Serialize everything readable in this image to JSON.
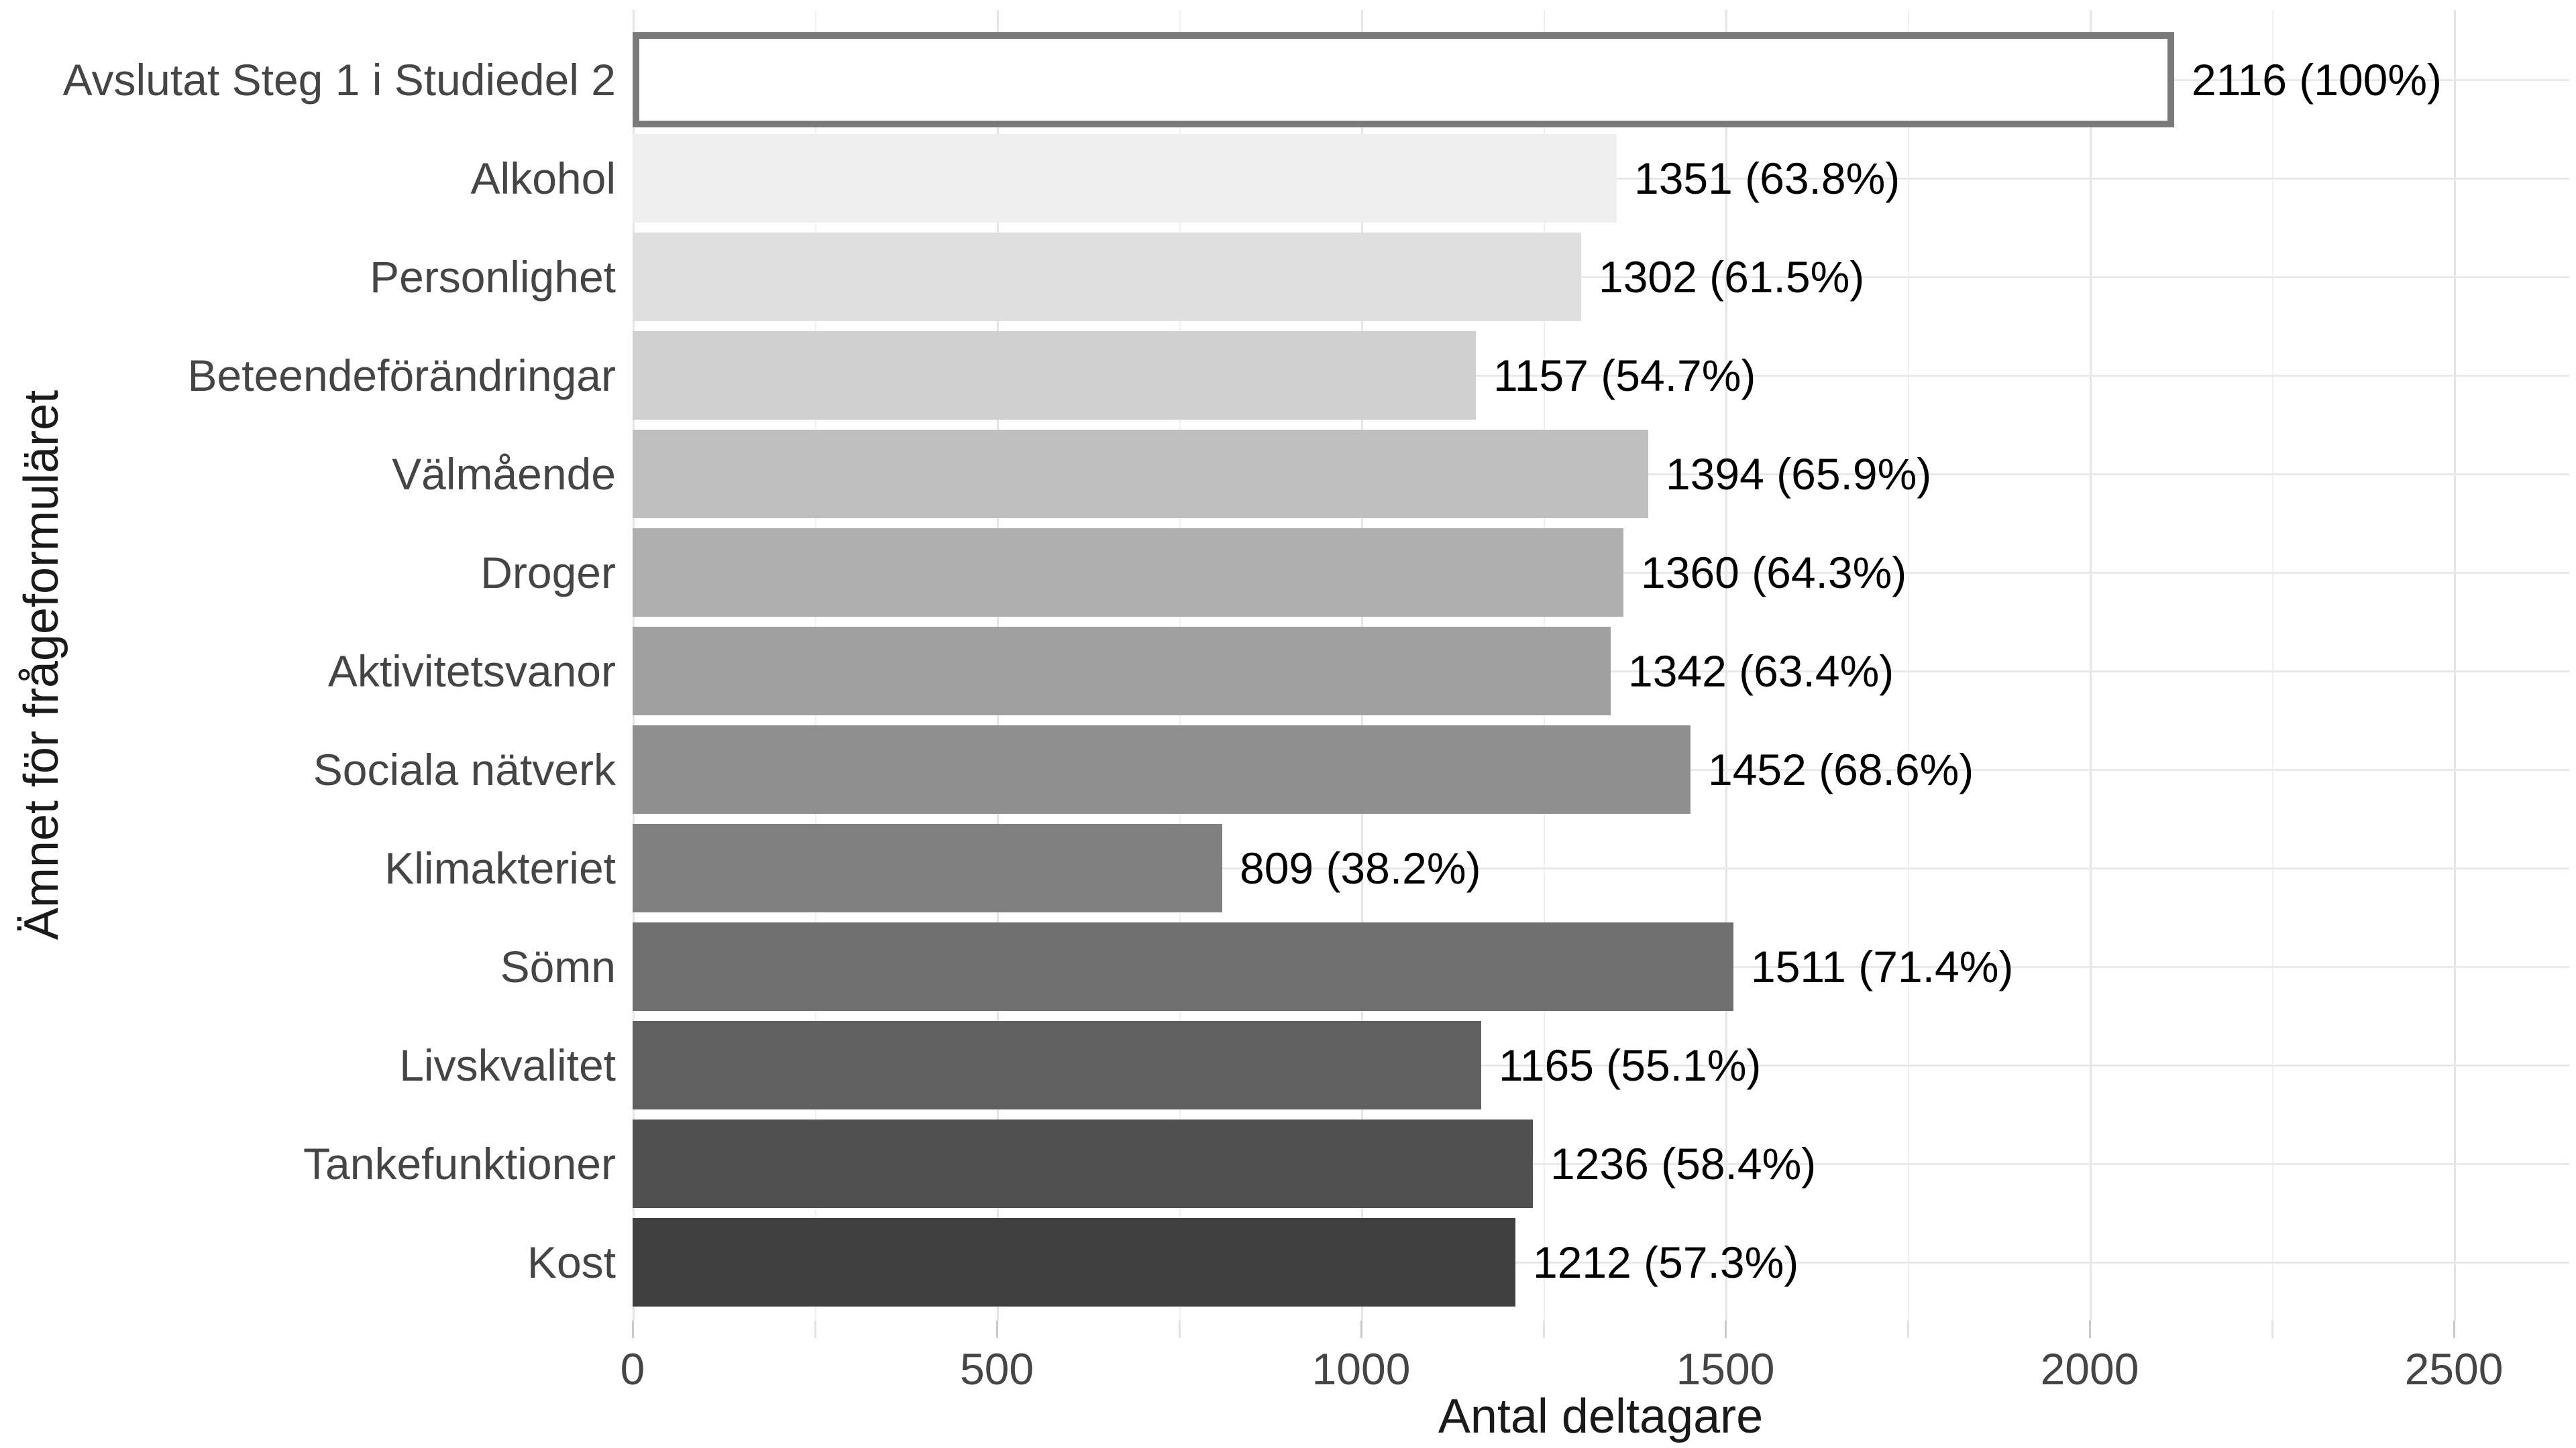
{
  "chart_data": {
    "type": "bar",
    "orientation": "horizontal",
    "title": "",
    "xlabel": "Antal deltagare",
    "ylabel": "Ämnet för frågeformuläret",
    "categories": [
      "Avslutat Steg 1 i Studiedel 2",
      "Alkohol",
      "Personlighet",
      "Beteendeförändringar",
      "Välmående",
      "Droger",
      "Aktivitetsvanor",
      "Sociala nätverk",
      "Klimakteriet",
      "Sömn",
      "Livskvalitet",
      "Tankefunktioner",
      "Kost"
    ],
    "values": [
      2116,
      1351,
      1302,
      1157,
      1394,
      1360,
      1342,
      1452,
      809,
      1511,
      1165,
      1236,
      1212
    ],
    "bar_labels": [
      "2116 (100%)",
      "1351 (63.8%)",
      "1302 (61.5%)",
      "1157 (54.7%)",
      "1394 (65.9%)",
      "1360 (64.3%)",
      "1342 (63.4%)",
      "1452 (68.6%)",
      "809 (38.2%)",
      "1511 (71.4%)",
      "1165 (55.1%)",
      "1236 (58.4%)",
      "1212 (57.3%)"
    ],
    "xlim": [
      0,
      2658
    ],
    "x_major_ticks": [
      0,
      500,
      1000,
      1500,
      2000,
      2500
    ],
    "x_tick_labels": [
      "0",
      "500",
      "1000",
      "1500",
      "2000",
      "2500"
    ],
    "x_minor_tick_step": 250,
    "legend": "none",
    "grid": "vertical major+minor, horizontal major per category",
    "bar_fills": [
      "#ffffff",
      "#efefef",
      "#dfdfdf",
      "#cfcfcf",
      "#bfbfbf",
      "#afafaf",
      "#9f9f9f",
      "#8f8f8f",
      "#808080",
      "#6f6f6f",
      "#606060",
      "#505050",
      "#404040"
    ],
    "highlight_bar_border": "#7a7a7a",
    "colors": {
      "background": "#ffffff",
      "grid_major": "#e5e5e5",
      "grid_minor": "#f0f0f0",
      "grid_horizontal": "#e9e9e9",
      "tick_major": "#c9c9c9",
      "tick_minor": "#e2e2e2",
      "axis_text": "#454545",
      "axis_title": "#1a1a1a",
      "value_label": "#000000"
    }
  }
}
